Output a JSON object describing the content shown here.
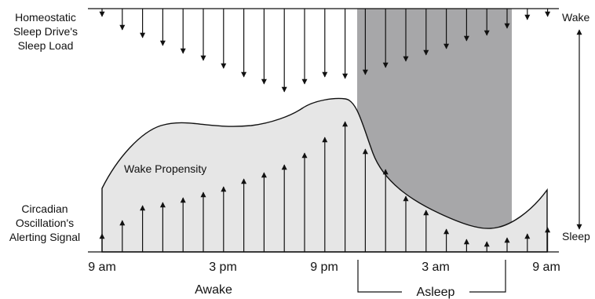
{
  "labels": {
    "sleep_load": [
      "Homeostatic",
      "Sleep Drive's",
      "Sleep Load"
    ],
    "alerting": [
      "Circadian",
      "Oscillation's",
      "Alerting Signal"
    ],
    "wake_propensity": "Wake Propensity",
    "wake": "Wake",
    "sleep": "Sleep",
    "awake": "Awake",
    "asleep": "Asleep"
  },
  "time_ticks": [
    "9 am",
    "3 pm",
    "9 pm",
    "3 am",
    "9 am"
  ],
  "colors": {
    "sleep_period_shade": "#a7a7a9",
    "wake_propensity_fill": "#e6e6e6",
    "line": "#111111"
  },
  "arrows_down_count": 23,
  "arrows_up_count": 23
}
